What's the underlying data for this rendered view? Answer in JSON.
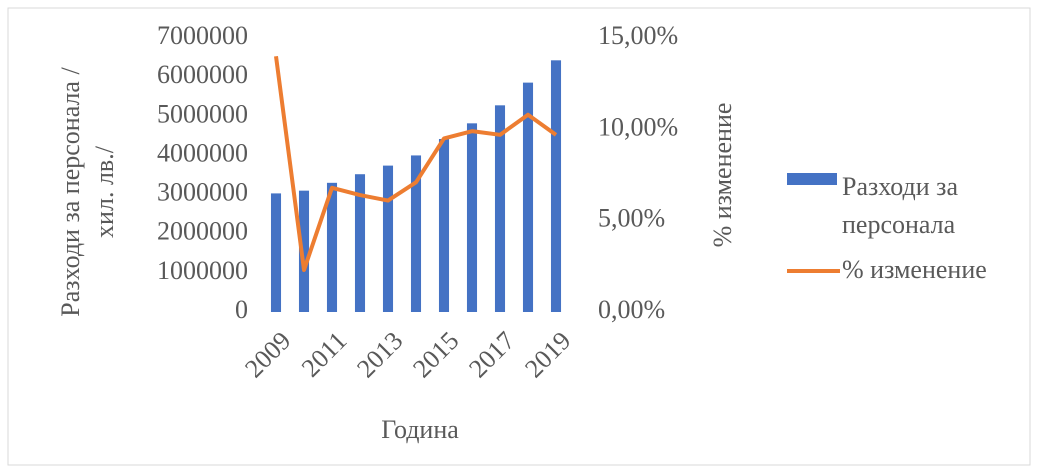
{
  "chart_data": {
    "type": "bar_line",
    "xlabel": "Година",
    "ylabel": "Разходи за персонала /хил. лв./",
    "y2label": "% изменение",
    "categories": [
      "2009",
      null,
      "2011",
      null,
      "2013",
      null,
      "2015",
      null,
      "2017",
      null,
      "2019"
    ],
    "series": [
      {
        "name": "Разходи за персонала",
        "color": "#4472c4",
        "type": "bar",
        "values": [
          3030000,
          3100000,
          3300000,
          3520000,
          3740000,
          4000000,
          4420000,
          4820000,
          5280000,
          5860000,
          6430000
        ]
      },
      {
        "name": "% изменение",
        "color": "#ed7d31",
        "type": "line",
        "axis": "y2",
        "values": [
          14.0,
          2.3,
          6.8,
          6.4,
          6.1,
          7.1,
          9.5,
          9.9,
          9.7,
          10.8,
          9.7
        ]
      }
    ],
    "ylim": [
      0,
      7000000
    ],
    "yticks": [
      0,
      1000000,
      2000000,
      3000000,
      4000000,
      5000000,
      6000000,
      7000000
    ],
    "y2lim": [
      0,
      15
    ],
    "y2ticks": [
      {
        "value": 0,
        "label": "0,00%"
      },
      {
        "value": 5,
        "label": "5,00%"
      },
      {
        "value": 10,
        "label": "10,00%"
      },
      {
        "value": 15,
        "label": "15,00%"
      }
    ],
    "legend": "right"
  }
}
